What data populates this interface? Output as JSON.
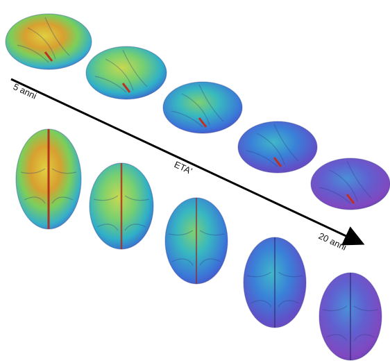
{
  "labels": {
    "start": "5 anni",
    "middle": "ETA'",
    "end": "20 anni"
  }
}
